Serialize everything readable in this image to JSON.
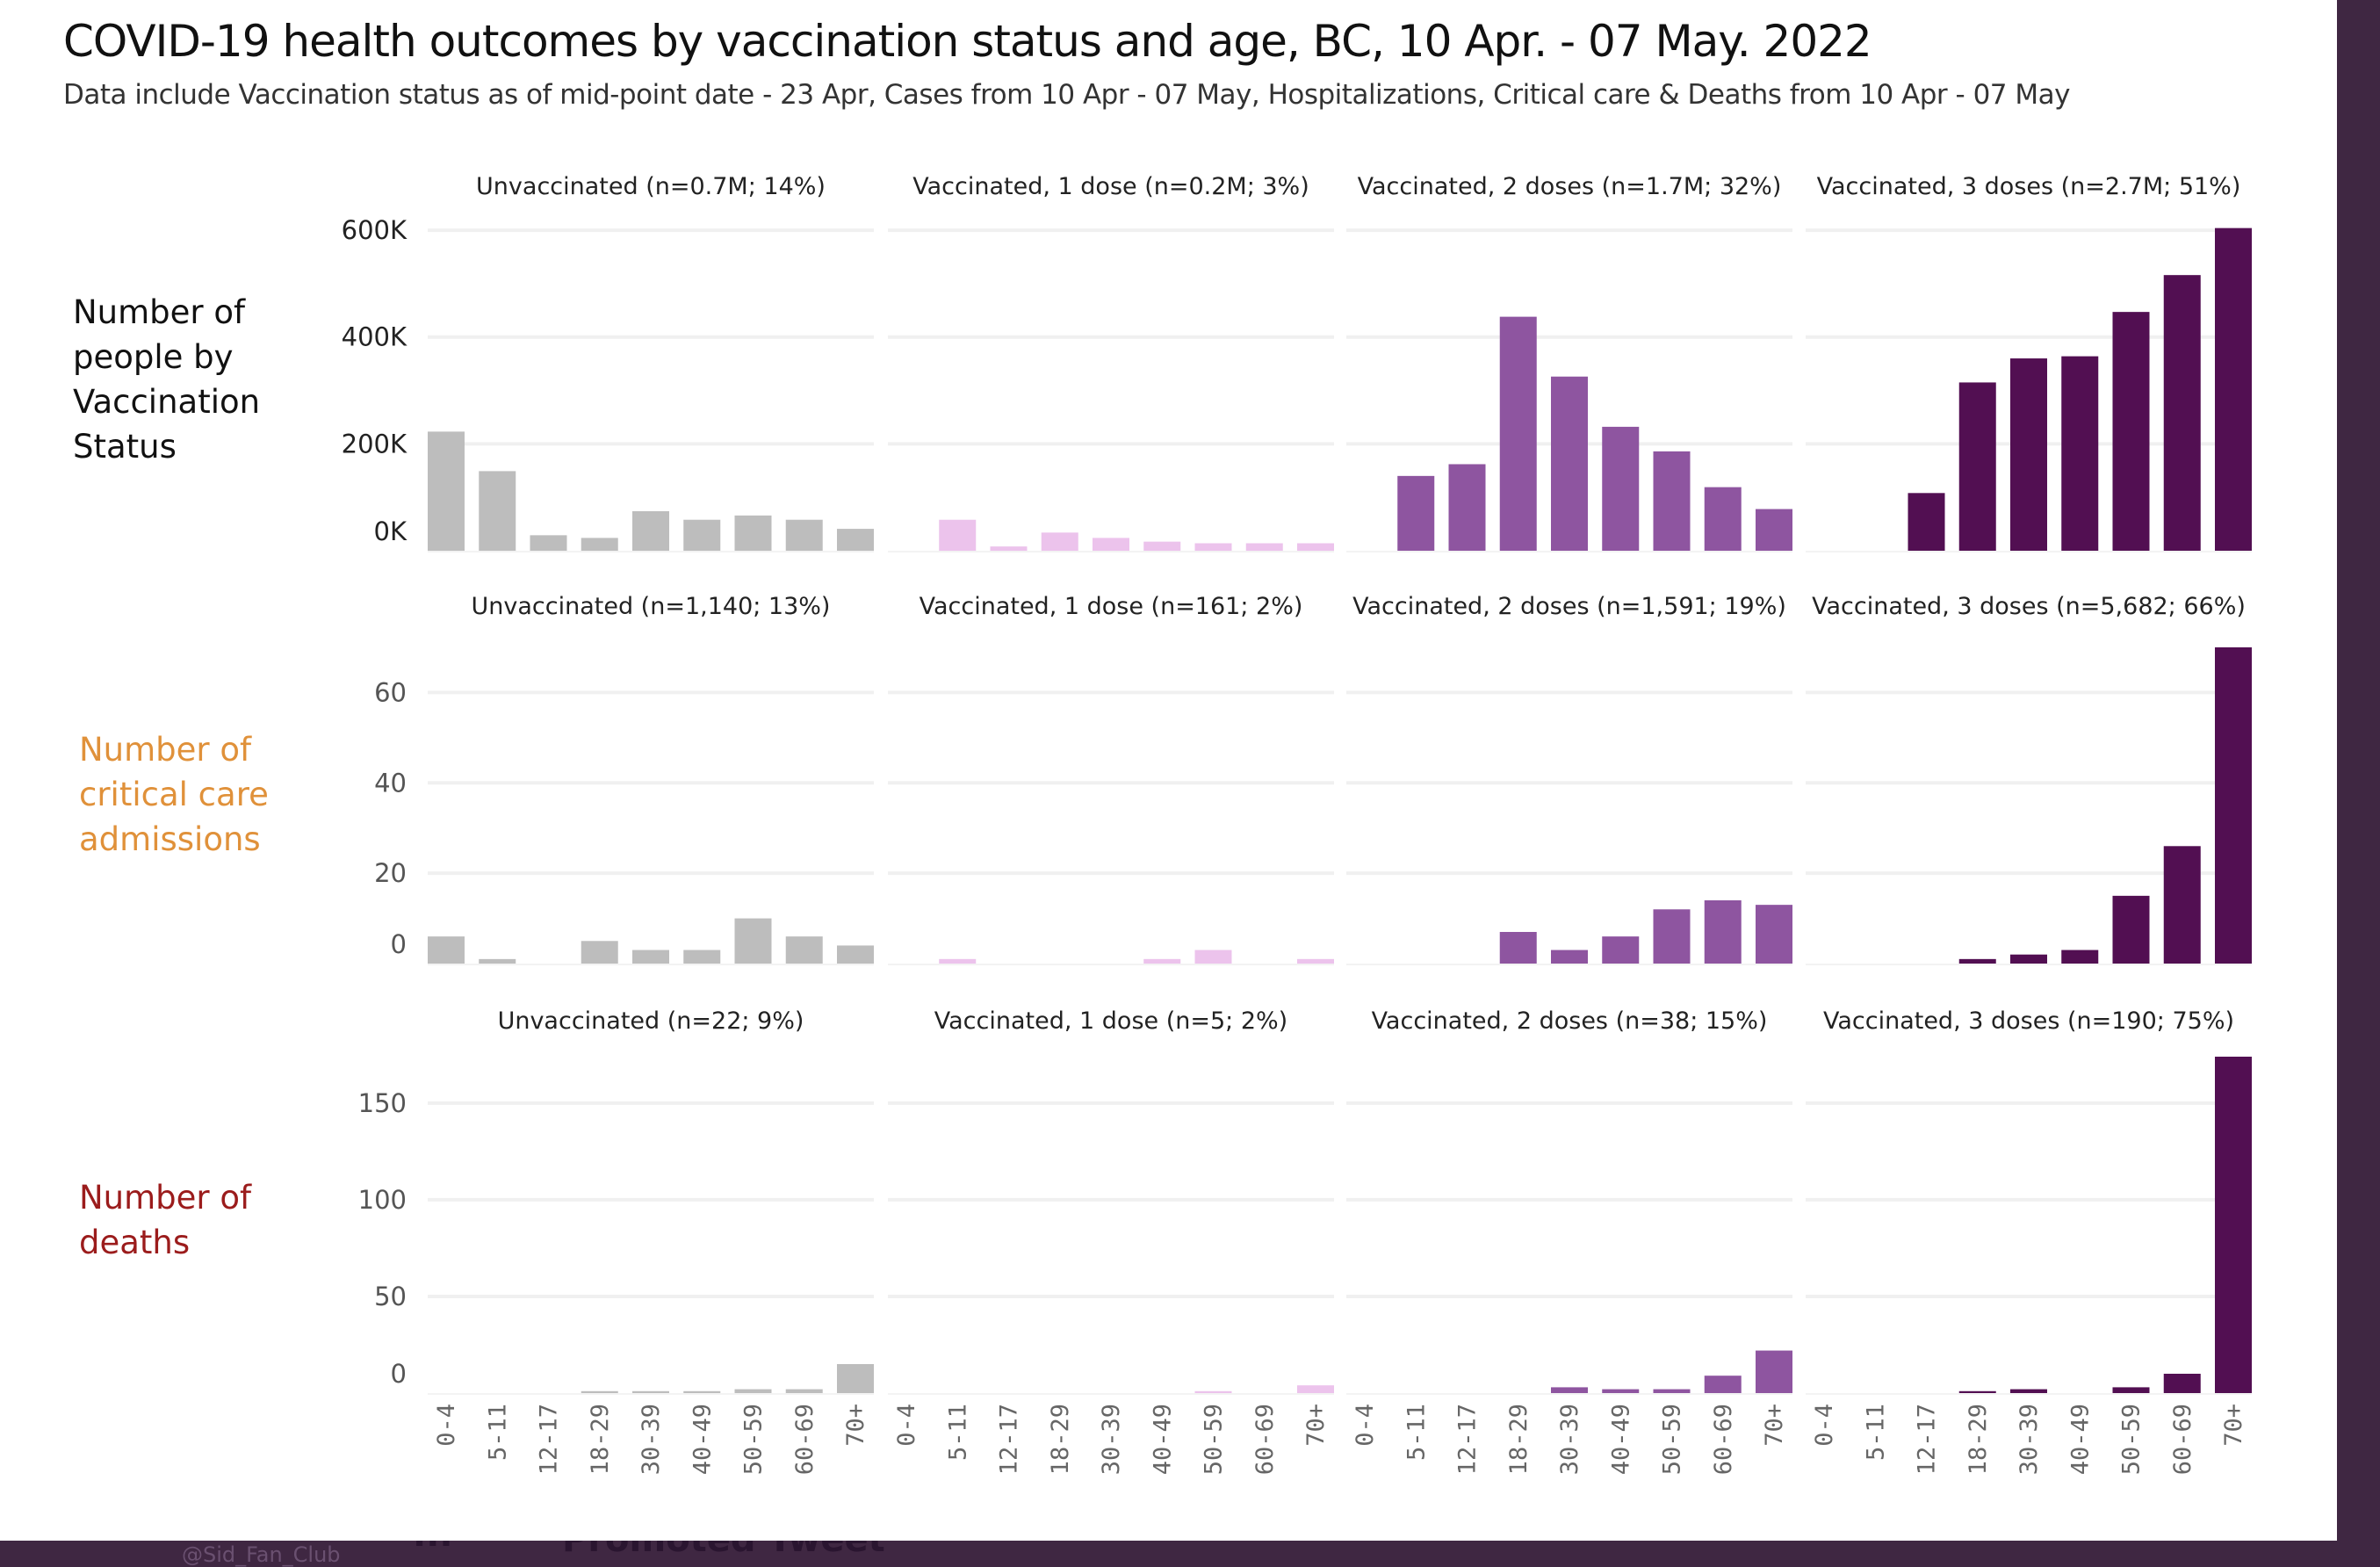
{
  "title": "COVID-19 health outcomes by vaccination status and age, BC,  10 Apr. - 07 May. 2022",
  "subtitle": "Data include Vaccination status as of mid-point date - 23 Apr, Cases  from  10 Apr - 07 May, Hospitalizations, Critical care & Deaths from 10 Apr - 07 May",
  "row_labels": {
    "people": "Number of\npeople by\nVaccination\nStatus",
    "critical": "Number of\ncritical care\nadmissions",
    "deaths": "Number of\ndeaths"
  },
  "row_label_colors": {
    "people": "#111111",
    "critical": "#e0913a",
    "deaths": "#9b1c1c"
  },
  "footer": {
    "more": "...",
    "promoted": "Promoted Tweet",
    "handle": "@Sid_Fan_Club"
  },
  "colors": {
    "Unvaccinated": "#bdbdbd",
    "1 dose": "#ecc3ec",
    "2 doses": "#8e55a0",
    "3 doses": "#520f52",
    "grid": "#f0f0f0",
    "frame": "#3f2742"
  },
  "chart_data": [
    {
      "type": "bar",
      "row": "people",
      "categories": [
        "0-4",
        "5-11",
        "12-17",
        "18-29",
        "30-39",
        "40-49",
        "50-59",
        "60-69",
        "70+"
      ],
      "ylim": [
        0,
        610000
      ],
      "yticks": [
        0,
        200000,
        400000,
        600000
      ],
      "ytick_labels": [
        "0K",
        "200K",
        "400K",
        "600K"
      ],
      "grid": true,
      "series": [
        {
          "name": "Unvaccinated (n=0.7M; 14%)",
          "color_key": "Unvaccinated",
          "values": [
            223000,
            149000,
            29000,
            24000,
            74000,
            58000,
            66000,
            58000,
            41000
          ]
        },
        {
          "name": "Vaccinated, 1 dose (n=0.2M; 3%)",
          "color_key": "1 dose",
          "values": [
            0,
            58000,
            8000,
            34000,
            24000,
            17000,
            14000,
            14000,
            14000
          ]
        },
        {
          "name": "Vaccinated, 2 doses (n=1.7M; 32%)",
          "color_key": "2 doses",
          "values": [
            0,
            140000,
            162000,
            438000,
            326000,
            232000,
            186000,
            119000,
            78000
          ]
        },
        {
          "name": "Vaccinated, 3 doses (n=2.7M; 51%)",
          "color_key": "3 doses",
          "values": [
            0,
            0,
            108000,
            315000,
            360000,
            364000,
            447000,
            516000,
            604000
          ]
        }
      ]
    },
    {
      "type": "bar",
      "row": "critical",
      "categories": [
        "0-4",
        "5-11",
        "12-17",
        "18-29",
        "30-39",
        "40-49",
        "50-59",
        "60-69",
        "70+"
      ],
      "ylim": [
        0,
        70
      ],
      "yticks": [
        0,
        20,
        40,
        60
      ],
      "ytick_labels": [
        "0",
        "20",
        "40",
        "60"
      ],
      "grid": true,
      "series": [
        {
          "name": "Unvaccinated (n=1,140; 13%)",
          "color_key": "Unvaccinated",
          "values": [
            6,
            1,
            0,
            5,
            3,
            3,
            10,
            6,
            4
          ]
        },
        {
          "name": "Vaccinated, 1 dose (n=161; 2%)",
          "color_key": "1 dose",
          "values": [
            0,
            1,
            0,
            0,
            0,
            1,
            3,
            0,
            1
          ]
        },
        {
          "name": "Vaccinated, 2 doses (n=1,591; 19%)",
          "color_key": "2 doses",
          "values": [
            0,
            0,
            0,
            7,
            3,
            6,
            12,
            14,
            13
          ]
        },
        {
          "name": "Vaccinated, 3 doses (n=5,682; 66%)",
          "color_key": "3 doses",
          "values": [
            0,
            0,
            0,
            1,
            2,
            3,
            15,
            26,
            70
          ]
        }
      ]
    },
    {
      "type": "bar",
      "row": "deaths",
      "categories": [
        "0-4",
        "5-11",
        "12-17",
        "18-29",
        "30-39",
        "40-49",
        "50-59",
        "60-69",
        "70+"
      ],
      "ylim": [
        0,
        174
      ],
      "yticks": [
        0,
        50,
        100,
        150
      ],
      "ytick_labels": [
        "0",
        "50",
        "100",
        "150"
      ],
      "grid": true,
      "series": [
        {
          "name": "Unvaccinated (n=22; 9%)",
          "color_key": "Unvaccinated",
          "values": [
            0,
            0,
            0,
            1,
            1,
            1,
            2,
            2,
            15
          ]
        },
        {
          "name": "Vaccinated, 1 dose (n=5; 2%)",
          "color_key": "1 dose",
          "values": [
            0,
            0,
            0,
            0,
            0,
            0,
            1,
            0,
            4
          ]
        },
        {
          "name": "Vaccinated, 2 doses (n=38; 15%)",
          "color_key": "2 doses",
          "values": [
            0,
            0,
            0,
            0,
            3,
            2,
            2,
            9,
            22
          ]
        },
        {
          "name": "Vaccinated, 3 doses (n=190; 75%)",
          "color_key": "3 doses",
          "values": [
            0,
            0,
            0,
            1,
            2,
            0,
            3,
            10,
            174
          ]
        }
      ]
    }
  ]
}
